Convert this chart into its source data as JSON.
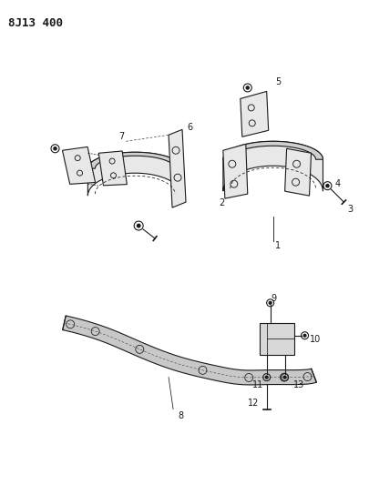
{
  "title": "8J13 400",
  "bg_color": "#ffffff",
  "line_color": "#1a1a1a",
  "fig_width": 4.06,
  "fig_height": 5.33,
  "dpi": 100,
  "gray_fill": "#e8e8e8",
  "light_gray": "#d0d0d0"
}
